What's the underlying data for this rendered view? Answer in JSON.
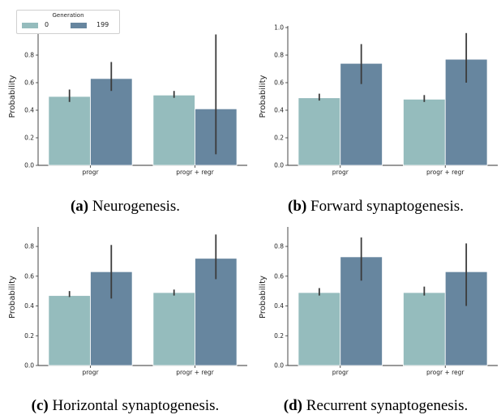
{
  "legend": {
    "title": "Generation",
    "items": [
      {
        "label": "0",
        "color": "#95bcbd"
      },
      {
        "label": "199",
        "color": "#67869f"
      }
    ]
  },
  "captions": [
    {
      "tag": "(a)",
      "text": " Neurogenesis."
    },
    {
      "tag": "(b)",
      "text": " Forward synaptogenesis."
    },
    {
      "tag": "(c)",
      "text": " Horizontal synaptogenesis."
    },
    {
      "tag": "(d)",
      "text": " Recurrent synaptogenesis."
    }
  ],
  "chart_data": [
    {
      "type": "bar",
      "ylabel": "Probability",
      "categories": [
        "progr",
        "progr + regr"
      ],
      "yticks": [
        "0.0",
        "0.2",
        "0.4",
        "0.6",
        "0.8"
      ],
      "ylim": [
        0,
        1.0
      ],
      "series": [
        {
          "name": "0",
          "values": [
            0.5,
            0.51
          ],
          "ci": [
            [
              0.46,
              0.55
            ],
            [
              0.49,
              0.54
            ]
          ]
        },
        {
          "name": "199",
          "values": [
            0.63,
            0.41
          ],
          "ci": [
            [
              0.54,
              0.75
            ],
            [
              0.08,
              0.95
            ]
          ]
        }
      ]
    },
    {
      "type": "bar",
      "ylabel": "Probability",
      "categories": [
        "progr",
        "progr + regr"
      ],
      "yticks": [
        "0.0",
        "0.2",
        "0.4",
        "0.6",
        "0.8",
        "1.0"
      ],
      "ylim": [
        0,
        1.0
      ],
      "series": [
        {
          "name": "0",
          "values": [
            0.49,
            0.48
          ],
          "ci": [
            [
              0.47,
              0.52
            ],
            [
              0.46,
              0.51
            ]
          ]
        },
        {
          "name": "199",
          "values": [
            0.74,
            0.77
          ],
          "ci": [
            [
              0.59,
              0.88
            ],
            [
              0.6,
              0.96
            ]
          ]
        }
      ]
    },
    {
      "type": "bar",
      "ylabel": "Probability",
      "categories": [
        "progr",
        "progr + regr"
      ],
      "yticks": [
        "0.0",
        "0.2",
        "0.4",
        "0.6",
        "0.8"
      ],
      "ylim": [
        0,
        0.92
      ],
      "series": [
        {
          "name": "0",
          "values": [
            0.47,
            0.49
          ],
          "ci": [
            [
              0.46,
              0.5
            ],
            [
              0.47,
              0.51
            ]
          ]
        },
        {
          "name": "199",
          "values": [
            0.63,
            0.72
          ],
          "ci": [
            [
              0.45,
              0.81
            ],
            [
              0.58,
              0.88
            ]
          ]
        }
      ]
    },
    {
      "type": "bar",
      "ylabel": "Probability",
      "categories": [
        "progr",
        "progr + regr"
      ],
      "yticks": [
        "0.0",
        "0.2",
        "0.4",
        "0.6",
        "0.8"
      ],
      "ylim": [
        0,
        0.92
      ],
      "series": [
        {
          "name": "0",
          "values": [
            0.49,
            0.49
          ],
          "ci": [
            [
              0.47,
              0.52
            ],
            [
              0.47,
              0.53
            ]
          ]
        },
        {
          "name": "199",
          "values": [
            0.73,
            0.63
          ],
          "ci": [
            [
              0.57,
              0.86
            ],
            [
              0.4,
              0.82
            ]
          ]
        }
      ]
    }
  ]
}
